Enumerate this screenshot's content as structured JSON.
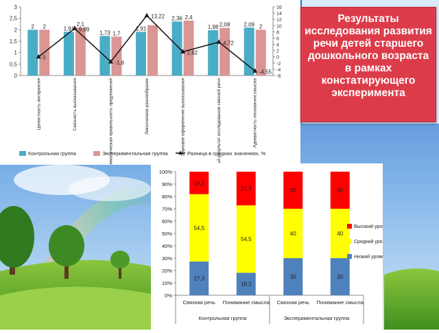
{
  "slide": {
    "title": "Результаты исследования развития речи детей старшего дошкольного возраста в рамках констатирующего эксперимента"
  },
  "chart_data": [
    {
      "type": "bar",
      "categories": [
        "Целостность восприятия",
        "Связность высказывания",
        "Грамматическая правильность предложений",
        "Лексическое разнообразие",
        "Звуковое оформление высказывания",
        "Обобщенный результат исследования связной речи",
        "Адекватность понимания смысла"
      ],
      "series": [
        {
          "name": "Контрольная группа",
          "values": [
            2,
            1.91,
            1.73,
            1.91,
            2.36,
            1.98,
            2.09
          ],
          "labels": [
            "2",
            "1,91",
            "1,73",
            "1,91",
            "2,36",
            "1,98",
            "2,09"
          ],
          "color": "#4bacc6"
        },
        {
          "name": "Экспериментальная группа",
          "values": [
            2,
            2.1,
            1.7,
            2.2,
            2.4,
            2.08,
            2
          ],
          "labels": [
            "2",
            "2,1",
            "1,7",
            "",
            "2,4",
            "2,08",
            "2"
          ],
          "color": "#d99694"
        },
        {
          "name": "Разница в средних значениях, %",
          "values": [
            0,
            9.09,
            -1.6,
            13.22,
            1.62,
            4.72,
            -4.55
          ],
          "labels": [
            "0",
            "9,09",
            "-1,6",
            "13,22",
            "1,62",
            "4,72",
            "-4,55"
          ],
          "color": "#1a1a1a",
          "axis": "right"
        }
      ],
      "ylim": [
        0,
        3
      ],
      "yticks": [
        "0",
        "0,5",
        "1",
        "1,5",
        "2",
        "2,5",
        "3"
      ],
      "y2lim": [
        -6,
        16
      ],
      "y2ticks": [
        "-6",
        "-4",
        "-2",
        "0",
        "2",
        "4",
        "6",
        "8",
        "10",
        "12",
        "14",
        "16"
      ],
      "legend": "bottom"
    },
    {
      "type": "bar",
      "stacked": true,
      "percent": true,
      "categories": [
        "Связная речь",
        "Понимание смысла",
        "Связная речь",
        "Понимание смысла"
      ],
      "groups": [
        "Контрольная группа",
        "Экспериментальная группа"
      ],
      "series": [
        {
          "name": "Низкий уровень",
          "values": [
            27.3,
            18.2,
            30,
            30
          ],
          "labels": [
            "27,3",
            "18,2",
            "30",
            "30"
          ],
          "color": "#4f81bd"
        },
        {
          "name": "Средний уровень",
          "values": [
            54.5,
            54.5,
            40,
            40
          ],
          "labels": [
            "54,5",
            "54,5",
            "40",
            "40"
          ],
          "color": "#ffff00"
        },
        {
          "name": "Высокий уровень",
          "values": [
            18.2,
            27.3,
            30,
            30
          ],
          "labels": [
            "18,2",
            "27,3",
            "30",
            "30"
          ],
          "color": "#ff0000"
        }
      ],
      "yticks": [
        "0%",
        "10%",
        "20%",
        "30%",
        "40%",
        "50%",
        "60%",
        "70%",
        "80%",
        "90%",
        "100%"
      ],
      "legend": "right"
    }
  ]
}
